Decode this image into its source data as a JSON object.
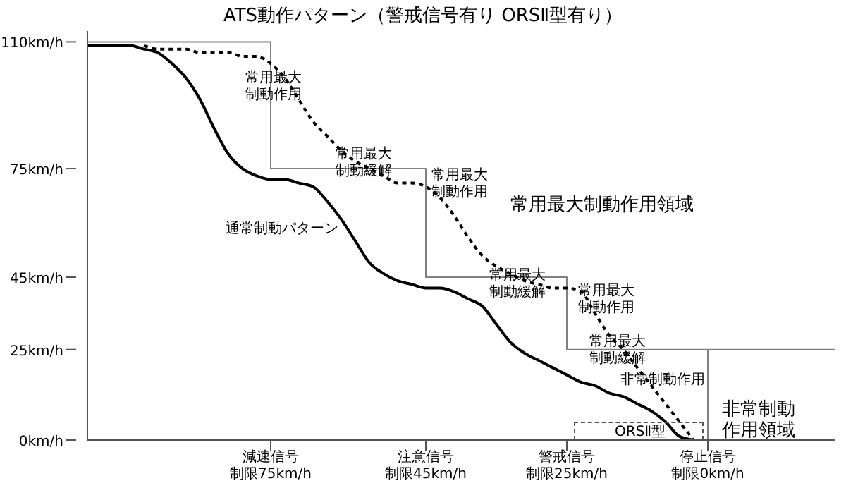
{
  "chart_data": {
    "type": "line",
    "title": "ATS動作パターン（警戒信号有り ORSⅡ型有り）",
    "categories": [
      null,
      null,
      null,
      null,
      null,
      null,
      null,
      null,
      null,
      null,
      null,
      null,
      null,
      "減速信号制限75km/h",
      null,
      null,
      null,
      null,
      null,
      null,
      null,
      null,
      null,
      null,
      "注意信号制限45km/h",
      null,
      null,
      null,
      null,
      null,
      null,
      null,
      null,
      null,
      "警戒信号制限25km/h",
      null,
      null,
      null,
      null,
      null,
      null,
      null,
      null,
      null,
      "停止信号制限0km/h",
      null,
      null,
      null,
      null,
      null,
      null,
      null,
      null,
      null
    ],
    "series": [
      {
        "type": "step",
        "color": "#808080",
        "values": [
          110,
          110,
          110,
          110,
          110,
          110,
          110,
          110,
          110,
          110,
          110,
          110,
          110,
          75,
          75,
          75,
          75,
          75,
          75,
          75,
          75,
          75,
          75,
          75,
          45,
          45,
          45,
          45,
          45,
          45,
          45,
          45,
          45,
          45,
          25,
          25,
          25,
          25,
          25,
          25,
          25,
          25,
          25,
          25,
          25,
          25,
          25,
          25,
          25,
          25,
          25,
          25,
          25,
          25
        ]
      },
      {
        "color": "#000000",
        "values": [
          109,
          109,
          109,
          109,
          108,
          107,
          104,
          100,
          94,
          86,
          79,
          75,
          73,
          72,
          72,
          71,
          70,
          66,
          61,
          55,
          49,
          46,
          44,
          43,
          42,
          42,
          41,
          39,
          37,
          32,
          27,
          24,
          22,
          20,
          18,
          16,
          15,
          13,
          12,
          10,
          8,
          5,
          1,
          0,
          null,
          null,
          null,
          null,
          null,
          null,
          null,
          null,
          null,
          null
        ]
      },
      {
        "color": "#000000",
        "line_style": "dashed",
        "values": [
          null,
          null,
          null,
          null,
          109,
          108,
          108,
          108,
          107,
          107,
          107,
          106,
          106,
          104,
          100,
          94,
          88,
          84,
          80,
          77,
          75,
          73,
          71,
          71,
          70,
          67,
          62,
          56,
          51,
          48,
          46,
          44,
          43,
          42,
          42,
          41,
          35,
          29,
          25,
          20,
          15,
          10,
          5,
          0,
          null,
          null,
          null,
          null,
          null,
          null,
          null,
          null,
          null,
          null
        ]
      },
      {
        "color": "#808080",
        "x": [
          "停止信号制限0km/h",
          "停止信号制限0km/h"
        ],
        "values": [
          0,
          25
        ]
      }
    ],
    "ylim": [
      0,
      113
    ],
    "yticks": [
      {
        "value": 0,
        "label": "0km/h"
      },
      {
        "value": 25,
        "label": "25km/h"
      },
      {
        "value": 45,
        "label": "45km/h"
      },
      {
        "value": 75,
        "label": "75km/h"
      },
      {
        "value": 110,
        "label": "110km/h"
      }
    ],
    "annotations": [
      "常用最大制動作用",
      "常用最大制動緩解",
      "常用最大制動作用",
      "常用最大制動作用領域",
      "通常制動パターン",
      "常用最大制動緩解",
      "常用最大制動作用",
      "常用最大制動緩解",
      "非常制動作用",
      "非常制動作用領域",
      "ORSⅡ型"
    ],
    "marker": "none",
    "grid": false,
    "legend": false
  }
}
